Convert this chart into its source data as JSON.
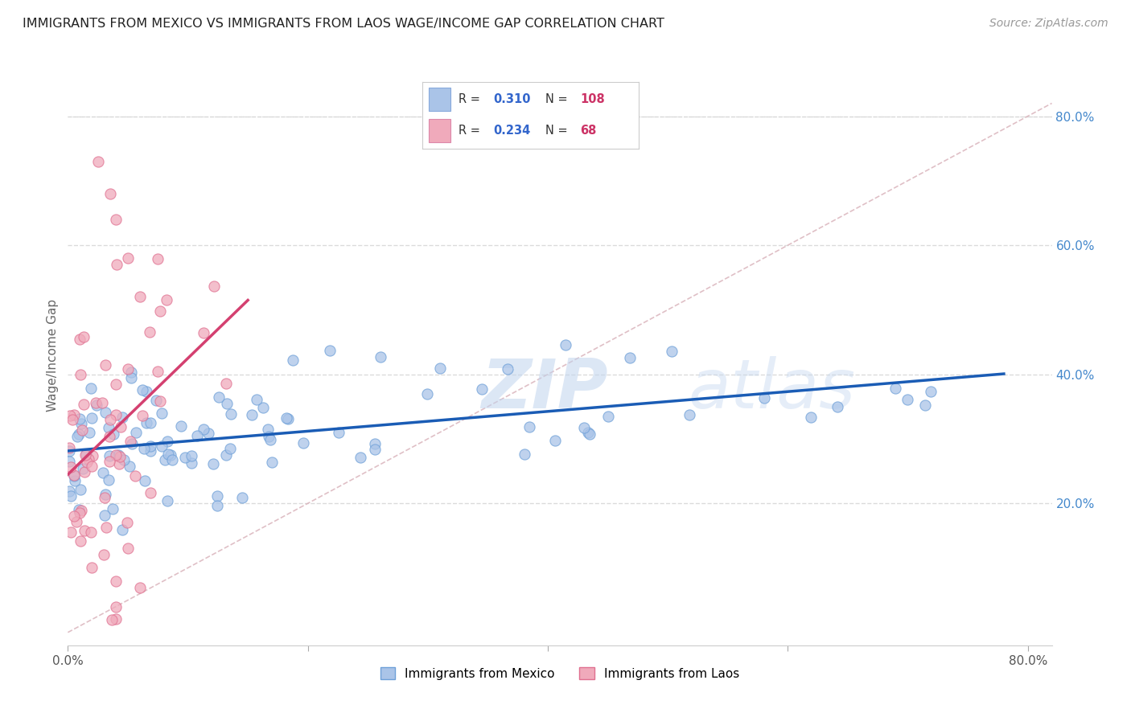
{
  "title": "IMMIGRANTS FROM MEXICO VS IMMIGRANTS FROM LAOS WAGE/INCOME GAP CORRELATION CHART",
  "source": "Source: ZipAtlas.com",
  "xlabel_mexico": "Immigrants from Mexico",
  "xlabel_laos": "Immigrants from Laos",
  "ylabel": "Wage/Income Gap",
  "watermark": "ZIPatlas",
  "xlim": [
    0.0,
    0.82
  ],
  "ylim": [
    -0.02,
    0.88
  ],
  "ytick_labels_right": [
    "20.0%",
    "40.0%",
    "60.0%",
    "80.0%"
  ],
  "ytick_positions_right": [
    0.2,
    0.4,
    0.6,
    0.8
  ],
  "mexico_color": "#aac4e8",
  "laos_color": "#f0aabb",
  "mexico_line_color": "#1a5cb5",
  "laos_line_color": "#d44070",
  "diagonal_color": "#d8b0b8",
  "R_mexico": 0.31,
  "N_mexico": 108,
  "R_laos": 0.234,
  "N_laos": 68,
  "background_color": "#ffffff",
  "grid_color": "#d8d8d8",
  "title_fontsize": 11.5,
  "legend_fontsize": 11,
  "source_fontsize": 10
}
